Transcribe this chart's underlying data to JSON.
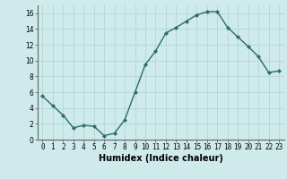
{
  "x": [
    0,
    1,
    2,
    3,
    4,
    5,
    6,
    7,
    8,
    9,
    10,
    11,
    12,
    13,
    14,
    15,
    16,
    17,
    18,
    19,
    20,
    21,
    22,
    23
  ],
  "y": [
    5.5,
    4.3,
    3.1,
    1.5,
    1.8,
    1.7,
    0.5,
    0.8,
    2.5,
    6.0,
    9.5,
    11.2,
    13.5,
    14.2,
    15.0,
    15.8,
    16.2,
    16.2,
    14.2,
    13.0,
    11.8,
    10.5,
    8.5,
    8.7
  ],
  "line_color": "#2d6b6b",
  "marker": "D",
  "marker_size": 2,
  "xlabel": "Humidex (Indice chaleur)",
  "xlim": [
    -0.5,
    23.5
  ],
  "ylim": [
    0,
    17
  ],
  "yticks": [
    0,
    2,
    4,
    6,
    8,
    10,
    12,
    14,
    16
  ],
  "xticks": [
    0,
    1,
    2,
    3,
    4,
    5,
    6,
    7,
    8,
    9,
    10,
    11,
    12,
    13,
    14,
    15,
    16,
    17,
    18,
    19,
    20,
    21,
    22,
    23
  ],
  "bg_color": "#ceeaea",
  "grid_color": "#b8d8d8",
  "linewidth": 1.0,
  "xlabel_fontsize": 7,
  "tick_fontsize": 5.5
}
